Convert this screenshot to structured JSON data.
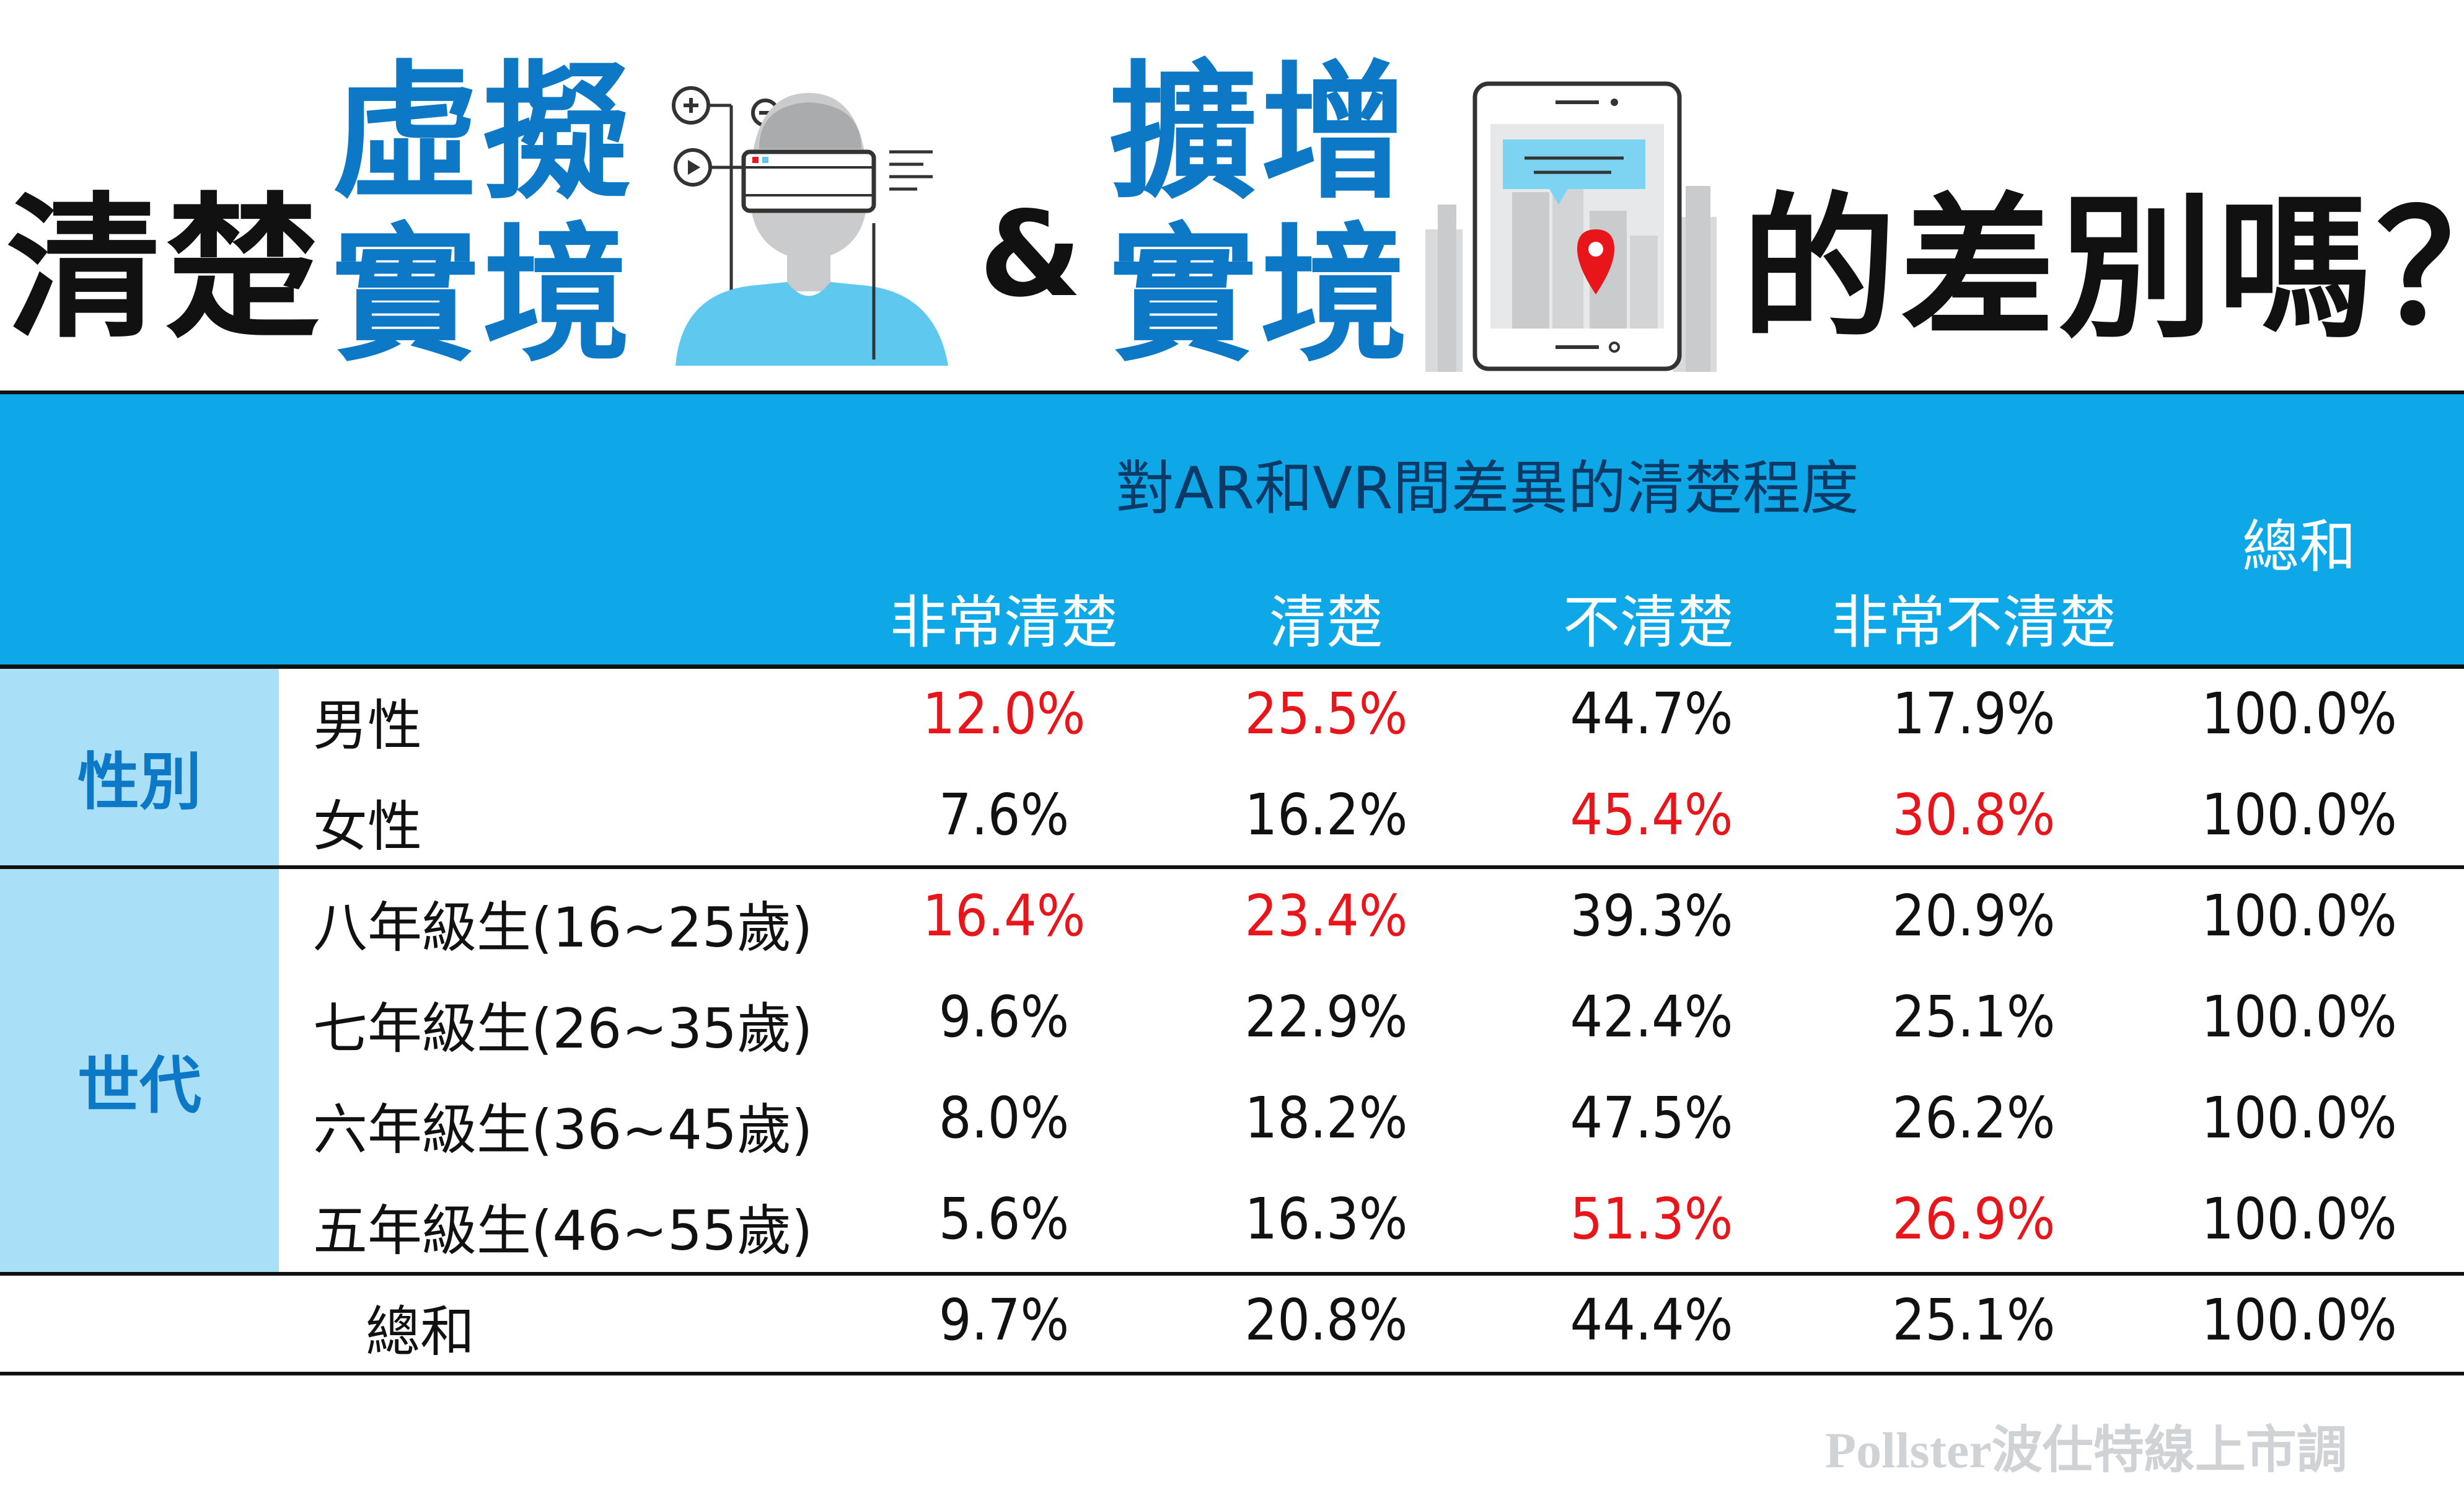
{
  "title": {
    "lead": "清楚",
    "vr_line1": "虛擬",
    "vr_line2": "實境",
    "ampersand": "&",
    "ar_line1": "擴增",
    "ar_line2": "實境",
    "tail": "的差別嗎？",
    "vr_icon": "vr-headset-person-icon",
    "ar_icon": "smartphone-map-pin-icon"
  },
  "colors": {
    "header_band": "#0ea8e8",
    "group_cell": "#a9e0f7",
    "title_blue": "#0d79c6",
    "highlight": "#e8161b",
    "text": "#111111"
  },
  "table": {
    "group_header": "對AR和VR間差異的清楚程度",
    "columns": [
      "非常清楚",
      "清楚",
      "不清楚",
      "非常不清楚"
    ],
    "total_column": "總和",
    "groups": [
      {
        "label": "性別"
      },
      {
        "label": "世代"
      }
    ],
    "rows": [
      {
        "label": "男性",
        "values": [
          "12.0%",
          "25.5%",
          "44.7%",
          "17.9%"
        ],
        "total": "100.0%",
        "highlight": [
          true,
          true,
          false,
          false
        ]
      },
      {
        "label": "女性",
        "values": [
          "7.6%",
          "16.2%",
          "45.4%",
          "30.8%"
        ],
        "total": "100.0%",
        "highlight": [
          false,
          false,
          true,
          true
        ]
      },
      {
        "label": "八年級生(16~25歲)",
        "values": [
          "16.4%",
          "23.4%",
          "39.3%",
          "20.9%"
        ],
        "total": "100.0%",
        "highlight": [
          true,
          true,
          false,
          false
        ]
      },
      {
        "label": "七年級生(26~35歲)",
        "values": [
          "9.6%",
          "22.9%",
          "42.4%",
          "25.1%"
        ],
        "total": "100.0%",
        "highlight": [
          false,
          false,
          false,
          false
        ]
      },
      {
        "label": "六年級生(36~45歲)",
        "values": [
          "8.0%",
          "18.2%",
          "47.5%",
          "26.2%"
        ],
        "total": "100.0%",
        "highlight": [
          false,
          false,
          false,
          false
        ]
      },
      {
        "label": "五年級生(46~55歲)",
        "values": [
          "5.6%",
          "16.3%",
          "51.3%",
          "26.9%"
        ],
        "total": "100.0%",
        "highlight": [
          false,
          false,
          true,
          true
        ]
      },
      {
        "label": "總和",
        "values": [
          "9.7%",
          "20.8%",
          "44.4%",
          "25.1%"
        ],
        "total": "100.0%",
        "highlight": [
          false,
          false,
          false,
          false
        ]
      }
    ]
  },
  "chart_data": {
    "type": "table",
    "title": "清楚虛擬實境&擴增實境的差別嗎？",
    "column_group": "對AR和VR間差異的清楚程度",
    "columns": [
      "非常清楚",
      "清楚",
      "不清楚",
      "非常不清楚",
      "總和"
    ],
    "row_groups": [
      {
        "name": "性別",
        "rows": [
          "男性",
          "女性"
        ]
      },
      {
        "name": "世代",
        "rows": [
          "八年級生(16~25歲)",
          "七年級生(26~35歲)",
          "六年級生(36~45歲)",
          "五年級生(46~55歲)"
        ]
      },
      {
        "name": "",
        "rows": [
          "總和"
        ]
      }
    ],
    "values": {
      "男性": [
        12.0,
        25.5,
        44.7,
        17.9,
        100.0
      ],
      "女性": [
        7.6,
        16.2,
        45.4,
        30.8,
        100.0
      ],
      "八年級生(16~25歲)": [
        16.4,
        23.4,
        39.3,
        20.9,
        100.0
      ],
      "七年級生(26~35歲)": [
        9.6,
        22.9,
        42.4,
        25.1,
        100.0
      ],
      "六年級生(36~45歲)": [
        8.0,
        18.2,
        47.5,
        26.2,
        100.0
      ],
      "五年級生(46~55歲)": [
        5.6,
        16.3,
        51.3,
        26.9,
        100.0
      ],
      "總和": [
        9.7,
        20.8,
        44.4,
        25.1,
        100.0
      ]
    },
    "unit": "%"
  },
  "footer": {
    "watermark": "Pollster波仕特線上市調"
  }
}
